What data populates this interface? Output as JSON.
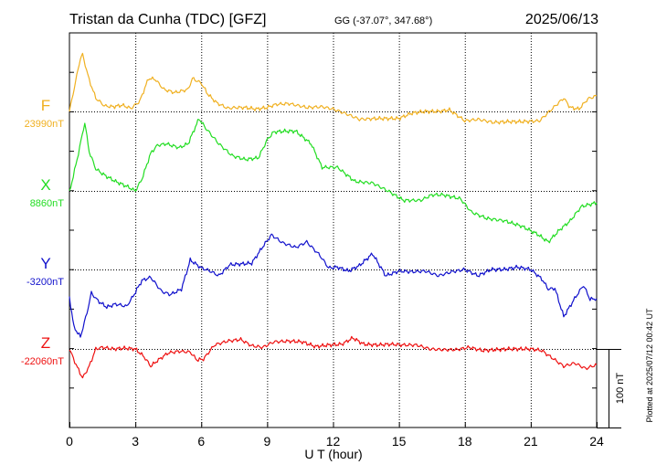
{
  "header": {
    "station": "Tristan da Cunha (TDC)  [GFZ]",
    "coords": "GG (-37.07°, 347.68°)",
    "date": "2025/06/13"
  },
  "footer": {
    "xlabel": "U T (hour)",
    "plotted": "Plotted at 2025/07/12 00:42 UT"
  },
  "scale_label": "100 nT",
  "chart_data": {
    "type": "line",
    "xlabel": "U T (hour)",
    "xlim": [
      0,
      24
    ],
    "x_ticks": [
      0,
      3,
      6,
      9,
      12,
      15,
      18,
      21,
      24
    ],
    "grid": true,
    "scale_nT": 100,
    "series": [
      {
        "name": "F",
        "baseline_label": "23990nT",
        "baseline_nT": 23990,
        "color": "#f0b020",
        "x": [
          0,
          0.5,
          0.6,
          0.9,
          1.2,
          1.6,
          2.0,
          2.4,
          2.8,
          3.2,
          3.6,
          3.9,
          4.3,
          4.8,
          5.4,
          5.6,
          6.0,
          6.3,
          6.7,
          7.2,
          7.6,
          8.0,
          8.5,
          9.0,
          9.4,
          10.0,
          10.8,
          11.5,
          12.0,
          12.6,
          13.2,
          14.0,
          15.0,
          15.6,
          16.2,
          16.8,
          17.3,
          18.0,
          18.6,
          19.3,
          20.0,
          20.6,
          21.4,
          22.0,
          22.5,
          22.8,
          23.2,
          23.6,
          24.0
        ],
        "values": [
          0,
          68,
          72,
          40,
          17,
          7,
          6,
          8,
          4,
          13,
          42,
          41,
          28,
          24,
          28,
          42,
          36,
          22,
          11,
          4,
          5,
          5,
          3,
          5,
          9,
          10,
          5,
          6,
          3,
          -3,
          -10,
          -9,
          -9,
          -2,
          0,
          0,
          2,
          -12,
          -10,
          -14,
          -13,
          -13,
          -12,
          4,
          17,
          5,
          3,
          16,
          20
        ]
      },
      {
        "name": "X",
        "baseline_label": "8860nT",
        "baseline_nT": 8860,
        "color": "#22dd22",
        "x": [
          0,
          0.35,
          0.7,
          0.9,
          1.2,
          1.6,
          2.1,
          2.6,
          3.0,
          3.3,
          3.7,
          4.0,
          4.4,
          5.0,
          5.4,
          5.9,
          6.2,
          6.8,
          7.4,
          8.0,
          8.6,
          9.0,
          9.3,
          9.8,
          10.3,
          11.0,
          11.5,
          12.2,
          13.0,
          13.8,
          14.5,
          15.2,
          16.0,
          16.5,
          17.0,
          17.8,
          18.3,
          19.0,
          19.8,
          20.6,
          21.3,
          21.8,
          22.3,
          22.8,
          23.3,
          24.0
        ],
        "values": [
          -2,
          40,
          87,
          50,
          28,
          20,
          12,
          6,
          0,
          15,
          48,
          58,
          60,
          55,
          60,
          92,
          80,
          60,
          45,
          40,
          42,
          65,
          75,
          76,
          76,
          60,
          30,
          30,
          12,
          10,
          0,
          -12,
          -12,
          -5,
          -5,
          -10,
          -27,
          -35,
          -38,
          -45,
          -55,
          -65,
          -50,
          -38,
          -20,
          -15
        ]
      },
      {
        "name": "Y",
        "baseline_label": "-3200nT",
        "baseline_nT": -3200,
        "color": "#1111cc",
        "x": [
          0,
          0.2,
          0.5,
          0.8,
          1.0,
          1.3,
          1.7,
          2.1,
          2.6,
          2.9,
          3.3,
          3.7,
          4.2,
          4.6,
          5.1,
          5.5,
          6.0,
          6.4,
          6.8,
          7.3,
          7.8,
          8.3,
          8.8,
          9.2,
          9.7,
          10.3,
          10.8,
          11.4,
          11.8,
          12.2,
          12.7,
          13.2,
          13.8,
          14.4,
          15.0,
          15.6,
          16.2,
          16.8,
          17.4,
          18.0,
          18.6,
          19.2,
          19.8,
          20.4,
          21.0,
          21.5,
          21.8,
          22.1,
          22.5,
          23.0,
          23.4,
          23.7,
          24.0
        ],
        "values": [
          -35,
          -73,
          -86,
          -55,
          -30,
          -40,
          -48,
          -44,
          -47,
          -34,
          -14,
          -10,
          -28,
          -32,
          -25,
          12,
          2,
          -2,
          -8,
          6,
          7,
          8,
          29,
          44,
          34,
          28,
          35,
          18,
          2,
          3,
          -2,
          5,
          20,
          -8,
          -2,
          -3,
          -2,
          -8,
          -3,
          0,
          -8,
          0,
          0,
          3,
          0,
          -12,
          -25,
          -24,
          -60,
          -37,
          -20,
          -38,
          -37
        ]
      },
      {
        "name": "Z",
        "baseline_label": "-22060nT",
        "baseline_nT": -22060,
        "color": "#ee1111",
        "x": [
          0,
          0.3,
          0.6,
          0.9,
          1.2,
          1.5,
          2.0,
          2.5,
          3.0,
          3.4,
          3.7,
          4.0,
          4.5,
          5.0,
          5.5,
          5.8,
          6.1,
          6.6,
          7.2,
          7.8,
          8.3,
          8.8,
          9.3,
          10.0,
          10.6,
          11.2,
          11.8,
          12.4,
          12.9,
          13.4,
          14.0,
          14.6,
          15.2,
          15.8,
          16.4,
          17.0,
          17.6,
          18.2,
          18.8,
          19.4,
          20.0,
          20.5,
          21.0,
          21.5,
          22.0,
          22.5,
          23.0,
          23.5,
          24.0
        ],
        "values": [
          0,
          -20,
          -37,
          -22,
          0,
          2,
          0,
          1,
          0,
          -10,
          -22,
          -15,
          -5,
          -3,
          -4,
          -14,
          -13,
          5,
          10,
          12,
          4,
          2,
          9,
          10,
          9,
          3,
          5,
          6,
          14,
          6,
          5,
          6,
          5,
          5,
          0,
          -1,
          -1,
          2,
          -2,
          -1,
          0,
          0,
          0,
          -2,
          -12,
          -22,
          -18,
          -25,
          -20
        ]
      }
    ]
  }
}
